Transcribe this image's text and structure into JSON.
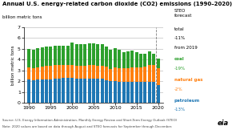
{
  "chart_data": {
    "type": "bar",
    "stacked": true,
    "title": "Annual U.S. energy-related carbon dioxide (CO2) emissions (1990–2020)",
    "subtitle": "billion metric tons",
    "y_label": "billion metric tons",
    "x": [
      1990,
      1991,
      1992,
      1993,
      1994,
      1995,
      1996,
      1997,
      1998,
      1999,
      2000,
      2001,
      2002,
      2003,
      2004,
      2005,
      2006,
      2007,
      2008,
      2009,
      2010,
      2011,
      2012,
      2013,
      2014,
      2015,
      2016,
      2017,
      2018,
      2019,
      2020
    ],
    "series": [
      {
        "name": "petroleum",
        "values": [
          2.15,
          2.09,
          2.14,
          2.13,
          2.19,
          2.19,
          2.23,
          2.26,
          2.28,
          2.29,
          2.29,
          2.21,
          2.2,
          2.2,
          2.26,
          2.26,
          2.22,
          2.22,
          2.11,
          1.98,
          2.01,
          1.95,
          1.92,
          1.92,
          1.94,
          1.93,
          1.91,
          1.95,
          1.97,
          1.92,
          1.67
        ]
      },
      {
        "name": "natural gas",
        "values": [
          1.15,
          1.13,
          1.17,
          1.21,
          1.24,
          1.24,
          1.26,
          1.24,
          1.2,
          1.21,
          1.23,
          1.23,
          1.24,
          1.26,
          1.25,
          1.24,
          1.24,
          1.24,
          1.22,
          1.18,
          1.23,
          1.28,
          1.28,
          1.3,
          1.33,
          1.36,
          1.39,
          1.42,
          1.53,
          1.58,
          1.55
        ]
      },
      {
        "name": "coal",
        "values": [
          1.71,
          1.73,
          1.74,
          1.79,
          1.76,
          1.76,
          1.81,
          1.8,
          1.8,
          1.79,
          2.1,
          1.98,
          1.97,
          2.0,
          2.0,
          2.01,
          1.96,
          1.96,
          1.9,
          1.74,
          1.83,
          1.72,
          1.52,
          1.53,
          1.57,
          1.43,
          1.24,
          1.21,
          1.25,
          1.07,
          0.87
        ]
      }
    ],
    "xlim": [
      1988.8,
      2021.2
    ],
    "xticks": [
      1990,
      1995,
      2000,
      2005,
      2010,
      2015,
      2020
    ],
    "ylim": [
      0,
      7
    ],
    "yticks": [
      0,
      1,
      2,
      3,
      4,
      5,
      6,
      7
    ],
    "grid": "y",
    "forecast_line": 2019.5,
    "annotations": [
      {
        "text": "STEO\nforecast"
      },
      {
        "text": "total"
      },
      {
        "text": "-11%"
      },
      {
        "text": "from 2019"
      },
      {
        "text": "-19%",
        "series": "coal"
      },
      {
        "text": "-2%",
        "series": "natural gas"
      },
      {
        "text": "-13%",
        "series": "petroleum"
      }
    ],
    "footer": [
      "Source: U.S. Energy Information Administration, Monthly Energy Review and Short-Term Energy Outlook (STEO)",
      "Note: 2020 values are based on data through August and STEO forecasts for September through December."
    ],
    "logo": "eia"
  }
}
